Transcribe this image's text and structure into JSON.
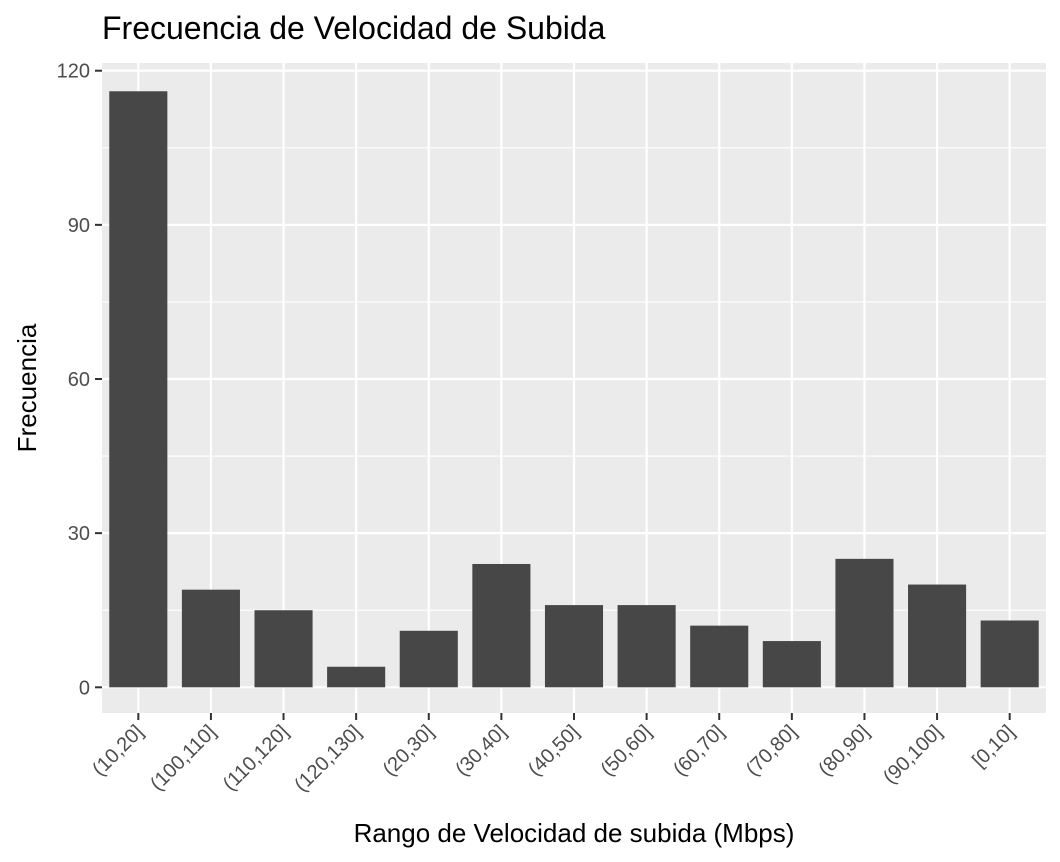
{
  "chart_data": {
    "type": "bar",
    "title": "Frecuencia de Velocidad de Subida",
    "xlabel": "Rango de Velocidad de subida (Mbps)",
    "ylabel": "Frecuencia",
    "categories": [
      "(10,20]",
      "(100,110]",
      "(110,120]",
      "(120,130]",
      "(20,30]",
      "(30,40]",
      "(40,50]",
      "(50,60]",
      "(60,70]",
      "(70,80]",
      "(80,90]",
      "(90,100]",
      "[0,10]"
    ],
    "values": [
      116,
      19,
      15,
      4,
      11,
      24,
      16,
      16,
      12,
      9,
      25,
      20,
      13
    ],
    "ylim": [
      -5,
      121.5
    ],
    "yticks": [
      0,
      30,
      60,
      90,
      120
    ],
    "yticks_labels": [
      "0",
      "30",
      "60",
      "90",
      "120"
    ],
    "grid": true,
    "colors": {
      "panel": "#ebebeb",
      "bar": "#474747",
      "grid": "#ffffff",
      "tick_text": "#4d4d4d"
    }
  }
}
